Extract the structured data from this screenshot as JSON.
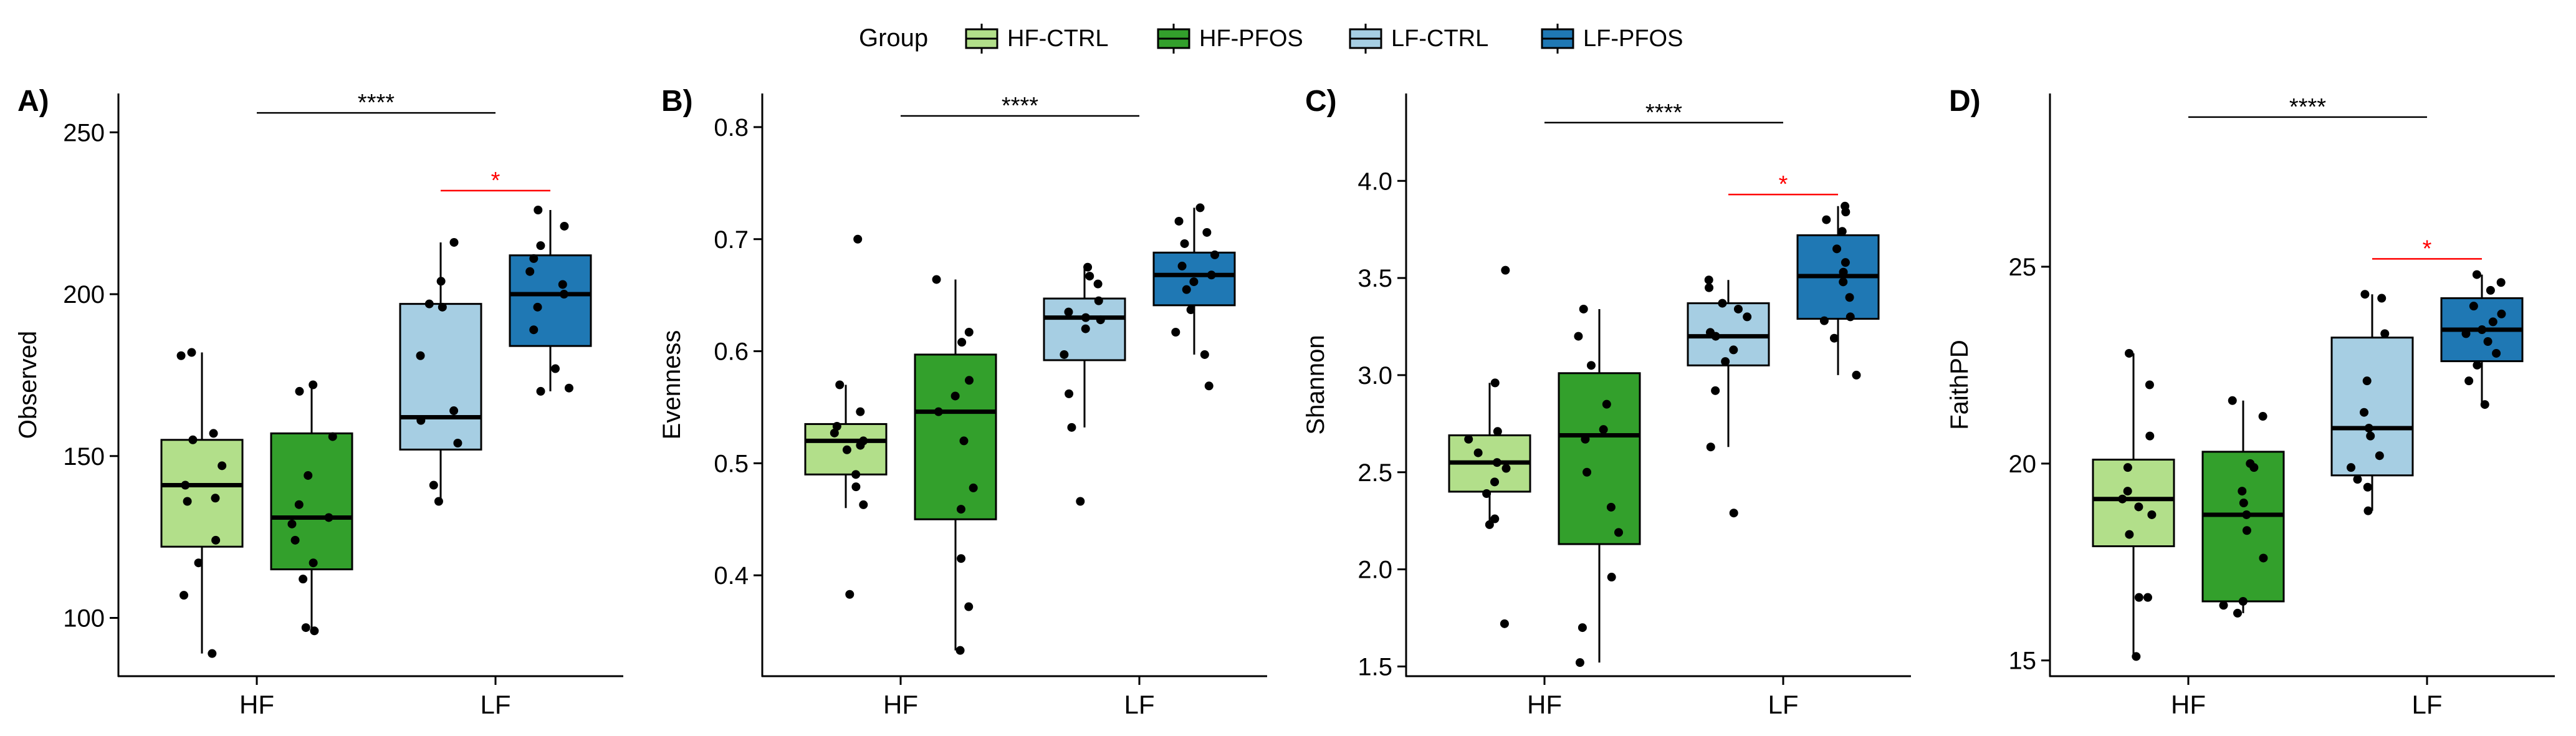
{
  "legend": {
    "title": "Group",
    "entries": [
      {
        "name": "HF-CTRL",
        "color": "#b2df8a"
      },
      {
        "name": "HF-PFOS",
        "color": "#33a02c"
      },
      {
        "name": "LF-CTRL",
        "color": "#a6cee3"
      },
      {
        "name": "LF-PFOS",
        "color": "#1f78b4"
      }
    ]
  },
  "chart_data": [
    {
      "type": "box",
      "panel_label": "A)",
      "ylabel": "Observed",
      "categories": [
        "HF",
        "LF"
      ],
      "ylim": [
        82,
        262
      ],
      "yticks": [
        100,
        150,
        200,
        250
      ],
      "groups": [
        {
          "name": "HF-CTRL",
          "category": "HF",
          "color": "#b2df8a",
          "whisker_low": 89,
          "q1": 122,
          "median": 141,
          "q3": 155,
          "whisker_high": 182,
          "points": [
            89,
            107,
            117,
            124,
            136,
            137,
            141,
            147,
            155,
            157,
            181,
            182
          ]
        },
        {
          "name": "HF-PFOS",
          "category": "HF",
          "color": "#33a02c",
          "whisker_low": 96,
          "q1": 115,
          "median": 131,
          "q3": 157,
          "whisker_high": 172,
          "points": [
            96,
            97,
            112,
            117,
            124,
            129,
            131,
            135,
            144,
            156,
            170,
            172
          ]
        },
        {
          "name": "LF-CTRL",
          "category": "LF",
          "color": "#a6cee3",
          "whisker_low": 136,
          "q1": 152,
          "median": 162,
          "q3": 197,
          "whisker_high": 216,
          "points": [
            136,
            141,
            154,
            161,
            164,
            181,
            196,
            197,
            204,
            216
          ]
        },
        {
          "name": "LF-PFOS",
          "category": "LF",
          "color": "#1f78b4",
          "whisker_low": 170,
          "q1": 184,
          "median": 200,
          "q3": 212,
          "whisker_high": 226,
          "points": [
            170,
            171,
            177,
            189,
            196,
            200,
            203,
            207,
            211,
            215,
            221,
            226
          ]
        }
      ],
      "annotations": [
        {
          "text": "****",
          "x_from": "HF",
          "x_to": "LF",
          "y": 256,
          "color": "#000000"
        },
        {
          "text": "*",
          "x_from": "LF-CTRL",
          "x_to": "LF-PFOS",
          "y": 232,
          "color": "#ff0000"
        }
      ]
    },
    {
      "type": "box",
      "panel_label": "B)",
      "ylabel": "Evenness",
      "categories": [
        "HF",
        "LF"
      ],
      "ylim": [
        0.31,
        0.83
      ],
      "yticks": [
        0.4,
        0.5,
        0.6,
        0.7,
        0.8
      ],
      "groups": [
        {
          "name": "HF-CTRL",
          "category": "HF",
          "color": "#b2df8a",
          "whisker_low": 0.46,
          "q1": 0.49,
          "median": 0.52,
          "q3": 0.535,
          "whisker_high": 0.57,
          "points": [
            0.383,
            0.463,
            0.479,
            0.49,
            0.512,
            0.516,
            0.52,
            0.527,
            0.533,
            0.546,
            0.57,
            0.7
          ]
        },
        {
          "name": "HF-PFOS",
          "category": "HF",
          "color": "#33a02c",
          "whisker_low": 0.333,
          "q1": 0.45,
          "median": 0.546,
          "q3": 0.597,
          "whisker_high": 0.664,
          "points": [
            0.333,
            0.372,
            0.415,
            0.459,
            0.478,
            0.52,
            0.546,
            0.56,
            0.574,
            0.608,
            0.617,
            0.664
          ]
        },
        {
          "name": "LF-CTRL",
          "category": "LF",
          "color": "#a6cee3",
          "whisker_low": 0.532,
          "q1": 0.592,
          "median": 0.63,
          "q3": 0.647,
          "whisker_high": 0.675,
          "points": [
            0.466,
            0.532,
            0.562,
            0.597,
            0.62,
            0.628,
            0.63,
            0.635,
            0.645,
            0.66,
            0.667,
            0.675
          ]
        },
        {
          "name": "LF-PFOS",
          "category": "LF",
          "color": "#1f78b4",
          "whisker_low": 0.597,
          "q1": 0.641,
          "median": 0.668,
          "q3": 0.688,
          "whisker_high": 0.728,
          "points": [
            0.569,
            0.597,
            0.617,
            0.637,
            0.655,
            0.662,
            0.668,
            0.676,
            0.686,
            0.696,
            0.706,
            0.716,
            0.728
          ]
        }
      ],
      "annotations": [
        {
          "text": "****",
          "x_from": "HF",
          "x_to": "LF",
          "y": 0.81,
          "color": "#000000"
        }
      ]
    },
    {
      "type": "box",
      "panel_label": "C)",
      "ylabel": "Shannon",
      "categories": [
        "HF",
        "LF"
      ],
      "ylim": [
        1.45,
        4.45
      ],
      "yticks": [
        1.5,
        2.0,
        2.5,
        3.0,
        3.5,
        4.0
      ],
      "groups": [
        {
          "name": "HF-CTRL",
          "category": "HF",
          "color": "#b2df8a",
          "whisker_low": 2.23,
          "q1": 2.4,
          "median": 2.55,
          "q3": 2.69,
          "whisker_high": 2.96,
          "points": [
            1.72,
            2.23,
            2.26,
            2.39,
            2.45,
            2.52,
            2.55,
            2.6,
            2.67,
            2.71,
            2.96,
            3.54
          ]
        },
        {
          "name": "HF-PFOS",
          "category": "HF",
          "color": "#33a02c",
          "whisker_low": 1.52,
          "q1": 2.13,
          "median": 2.69,
          "q3": 3.01,
          "whisker_high": 3.34,
          "points": [
            1.52,
            1.7,
            1.96,
            2.19,
            2.32,
            2.5,
            2.67,
            2.72,
            2.85,
            3.05,
            3.2,
            3.34
          ]
        },
        {
          "name": "LF-CTRL",
          "category": "LF",
          "color": "#a6cee3",
          "whisker_low": 2.63,
          "q1": 3.05,
          "median": 3.2,
          "q3": 3.37,
          "whisker_high": 3.49,
          "points": [
            2.29,
            2.63,
            2.92,
            3.07,
            3.13,
            3.2,
            3.22,
            3.3,
            3.34,
            3.37,
            3.45,
            3.49
          ]
        },
        {
          "name": "LF-PFOS",
          "category": "LF",
          "color": "#1f78b4",
          "whisker_low": 3.0,
          "q1": 3.29,
          "median": 3.51,
          "q3": 3.72,
          "whisker_high": 3.87,
          "points": [
            3.0,
            3.19,
            3.28,
            3.3,
            3.4,
            3.48,
            3.53,
            3.58,
            3.65,
            3.74,
            3.8,
            3.84,
            3.87
          ]
        }
      ],
      "annotations": [
        {
          "text": "****",
          "x_from": "HF",
          "x_to": "LF",
          "y": 4.3,
          "color": "#000000"
        },
        {
          "text": "*",
          "x_from": "LF-CTRL",
          "x_to": "LF-PFOS",
          "y": 3.93,
          "color": "#ff0000"
        }
      ]
    },
    {
      "type": "box",
      "panel_label": "D)",
      "ylabel": "FaithPD",
      "categories": [
        "HF",
        "LF"
      ],
      "ylim": [
        14.6,
        29.4
      ],
      "yticks": [
        15,
        20,
        25
      ],
      "groups": [
        {
          "name": "HF-CTRL",
          "category": "HF",
          "color": "#b2df8a",
          "whisker_low": 15.1,
          "q1": 17.9,
          "median": 19.1,
          "q3": 20.1,
          "whisker_high": 22.8,
          "points": [
            15.1,
            16.6,
            16.6,
            18.2,
            18.7,
            18.9,
            19.1,
            19.3,
            19.9,
            20.7,
            22.0,
            22.8
          ]
        },
        {
          "name": "HF-PFOS",
          "category": "HF",
          "color": "#33a02c",
          "whisker_low": 16.2,
          "q1": 16.5,
          "median": 18.7,
          "q3": 20.3,
          "whisker_high": 21.6,
          "points": [
            16.2,
            16.4,
            16.5,
            17.6,
            18.3,
            18.7,
            19.0,
            19.3,
            19.9,
            20.0,
            21.2,
            21.6
          ]
        },
        {
          "name": "LF-CTRL",
          "category": "LF",
          "color": "#a6cee3",
          "whisker_low": 18.8,
          "q1": 19.7,
          "median": 20.9,
          "q3": 23.2,
          "whisker_high": 24.3,
          "points": [
            18.8,
            19.4,
            19.6,
            19.9,
            20.2,
            20.7,
            20.9,
            21.3,
            22.1,
            23.3,
            24.2,
            24.3
          ]
        },
        {
          "name": "LF-PFOS",
          "category": "LF",
          "color": "#1f78b4",
          "whisker_low": 21.5,
          "q1": 22.6,
          "median": 23.4,
          "q3": 24.2,
          "whisker_high": 24.8,
          "points": [
            21.5,
            22.1,
            22.5,
            22.8,
            23.1,
            23.3,
            23.4,
            23.6,
            23.8,
            24.0,
            24.4,
            24.6,
            24.8
          ]
        }
      ],
      "annotations": [
        {
          "text": "****",
          "x_from": "HF",
          "x_to": "LF",
          "y": 28.8,
          "color": "#000000"
        },
        {
          "text": "*",
          "x_from": "LF-CTRL",
          "x_to": "LF-PFOS",
          "y": 25.2,
          "color": "#ff0000"
        }
      ]
    }
  ]
}
